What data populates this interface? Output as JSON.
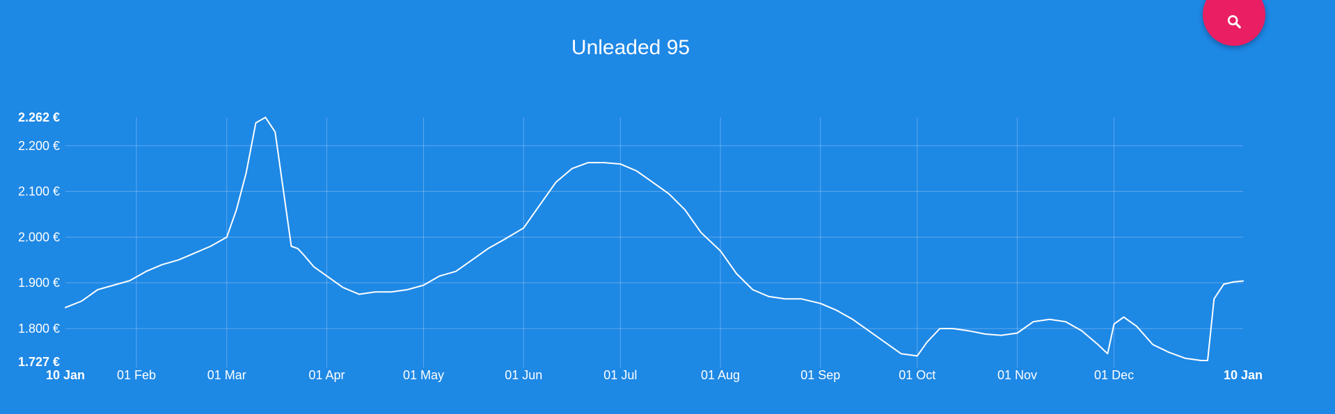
{
  "colors": {
    "background": "#1e88e5",
    "accent": "#e91e63",
    "line": "#ffffff"
  },
  "search_button": {
    "icon": "search-icon"
  },
  "chart_data": {
    "type": "line",
    "title": "Unleaded 95",
    "xlabel": "",
    "ylabel": "",
    "grid": true,
    "ylim": [
      1.727,
      2.262
    ],
    "xlim": [
      "2022-01-10",
      "2023-01-10"
    ],
    "y_ticks": [
      {
        "value": 1.727,
        "label": "1.727 €",
        "bold": true
      },
      {
        "value": 1.8,
        "label": "1.800 €",
        "bold": false
      },
      {
        "value": 1.9,
        "label": "1.900 €",
        "bold": false
      },
      {
        "value": 2.0,
        "label": "2.000 €",
        "bold": false
      },
      {
        "value": 2.1,
        "label": "2.100 €",
        "bold": false
      },
      {
        "value": 2.2,
        "label": "2.200 €",
        "bold": false
      },
      {
        "value": 2.262,
        "label": "2.262 €",
        "bold": true
      }
    ],
    "x_ticks": [
      {
        "date": "2022-01-10",
        "label": "10 Jan",
        "bold": true,
        "grid": false
      },
      {
        "date": "2022-02-01",
        "label": "01 Feb",
        "bold": false,
        "grid": true
      },
      {
        "date": "2022-03-01",
        "label": "01 Mar",
        "bold": false,
        "grid": true
      },
      {
        "date": "2022-04-01",
        "label": "01 Apr",
        "bold": false,
        "grid": true
      },
      {
        "date": "2022-05-01",
        "label": "01 May",
        "bold": false,
        "grid": true
      },
      {
        "date": "2022-06-01",
        "label": "01 Jun",
        "bold": false,
        "grid": true
      },
      {
        "date": "2022-07-01",
        "label": "01 Jul",
        "bold": false,
        "grid": true
      },
      {
        "date": "2022-08-01",
        "label": "01 Aug",
        "bold": false,
        "grid": true
      },
      {
        "date": "2022-09-01",
        "label": "01 Sep",
        "bold": false,
        "grid": true
      },
      {
        "date": "2022-10-01",
        "label": "01 Oct",
        "bold": false,
        "grid": true
      },
      {
        "date": "2022-11-01",
        "label": "01 Nov",
        "bold": false,
        "grid": true
      },
      {
        "date": "2022-12-01",
        "label": "01 Dec",
        "bold": false,
        "grid": true
      },
      {
        "date": "2023-01-10",
        "label": "10 Jan",
        "bold": true,
        "grid": false
      }
    ],
    "series": [
      {
        "color": "#ffffff",
        "x": [
          "2022-01-10",
          "2022-01-15",
          "2022-01-20",
          "2022-01-25",
          "2022-01-30",
          "2022-02-04",
          "2022-02-09",
          "2022-02-14",
          "2022-02-19",
          "2022-02-24",
          "2022-03-01",
          "2022-03-04",
          "2022-03-07",
          "2022-03-10",
          "2022-03-13",
          "2022-03-16",
          "2022-03-19",
          "2022-03-21",
          "2022-03-23",
          "2022-03-25",
          "2022-03-28",
          "2022-04-01",
          "2022-04-06",
          "2022-04-11",
          "2022-04-16",
          "2022-04-21",
          "2022-04-26",
          "2022-05-01",
          "2022-05-06",
          "2022-05-11",
          "2022-05-16",
          "2022-05-21",
          "2022-05-26",
          "2022-06-01",
          "2022-06-06",
          "2022-06-11",
          "2022-06-16",
          "2022-06-21",
          "2022-06-26",
          "2022-07-01",
          "2022-07-06",
          "2022-07-11",
          "2022-07-16",
          "2022-07-21",
          "2022-07-26",
          "2022-08-01",
          "2022-08-06",
          "2022-08-11",
          "2022-08-16",
          "2022-08-21",
          "2022-08-26",
          "2022-09-01",
          "2022-09-06",
          "2022-09-11",
          "2022-09-16",
          "2022-09-21",
          "2022-09-26",
          "2022-10-01",
          "2022-10-04",
          "2022-10-08",
          "2022-10-12",
          "2022-10-17",
          "2022-10-22",
          "2022-10-27",
          "2022-11-01",
          "2022-11-06",
          "2022-11-11",
          "2022-11-16",
          "2022-11-21",
          "2022-11-26",
          "2022-11-29",
          "2022-12-01",
          "2022-12-04",
          "2022-12-08",
          "2022-12-13",
          "2022-12-18",
          "2022-12-23",
          "2022-12-28",
          "2022-12-30",
          "2023-01-01",
          "2023-01-04",
          "2023-01-07",
          "2023-01-10"
        ],
        "y": [
          1.846,
          1.86,
          1.885,
          1.895,
          1.905,
          1.925,
          1.94,
          1.95,
          1.965,
          1.98,
          2.0,
          2.06,
          2.14,
          2.25,
          2.262,
          2.23,
          2.08,
          1.98,
          1.975,
          1.96,
          1.935,
          1.915,
          1.89,
          1.875,
          1.88,
          1.88,
          1.885,
          1.895,
          1.915,
          1.925,
          1.95,
          1.975,
          1.995,
          2.02,
          2.07,
          2.12,
          2.15,
          2.163,
          2.163,
          2.16,
          2.145,
          2.12,
          2.095,
          2.06,
          2.01,
          1.97,
          1.92,
          1.885,
          1.87,
          1.865,
          1.865,
          1.855,
          1.84,
          1.82,
          1.795,
          1.77,
          1.745,
          1.74,
          1.77,
          1.8,
          1.8,
          1.795,
          1.788,
          1.785,
          1.79,
          1.815,
          1.82,
          1.815,
          1.795,
          1.765,
          1.745,
          1.81,
          1.825,
          1.805,
          1.765,
          1.748,
          1.735,
          1.73,
          1.73,
          1.865,
          1.897,
          1.902,
          1.904
        ]
      }
    ]
  }
}
